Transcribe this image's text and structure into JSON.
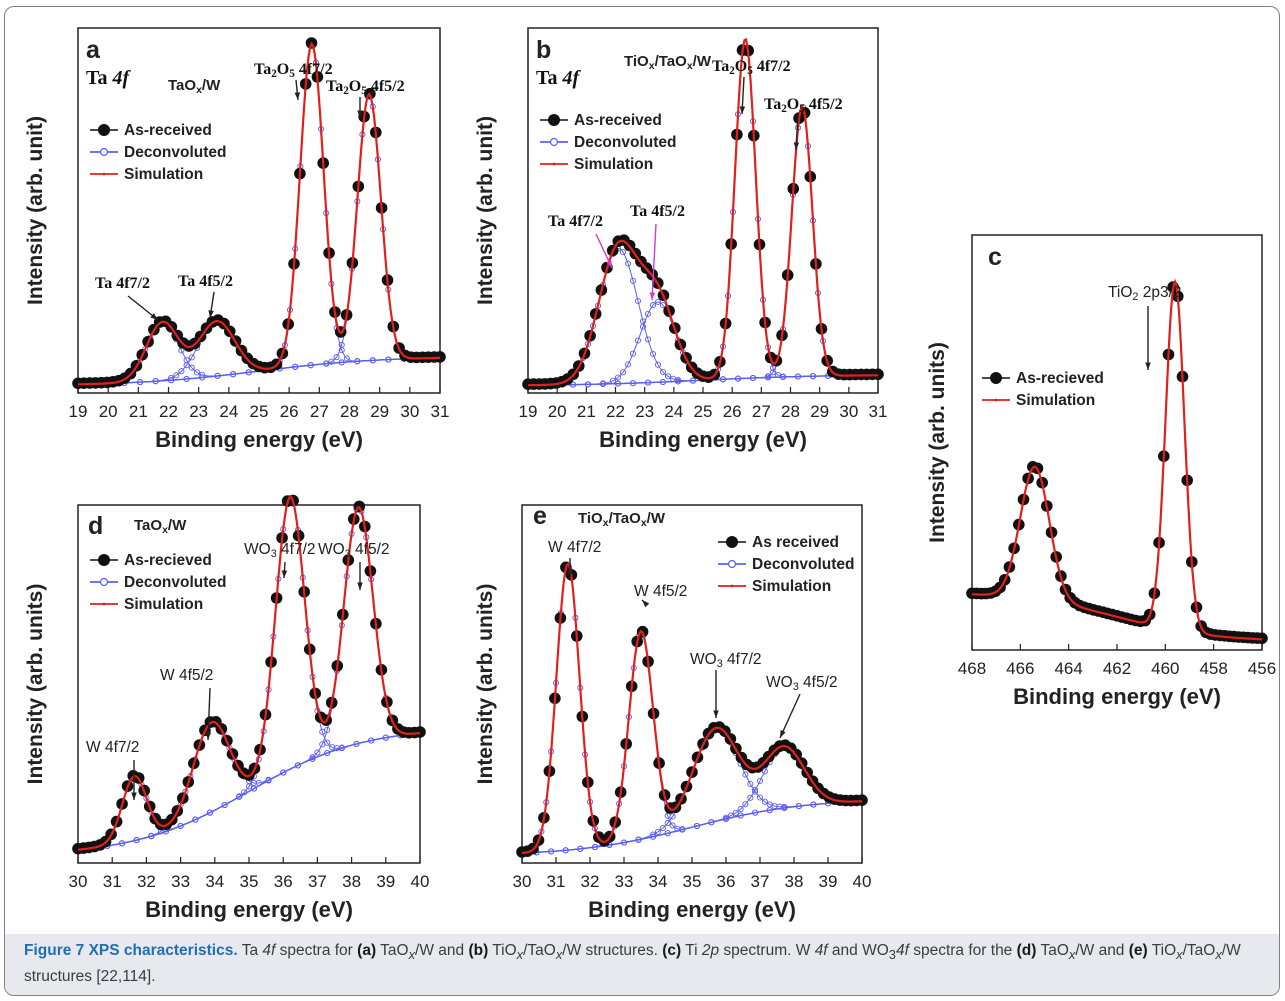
{
  "colors": {
    "measured": "#111111",
    "deconvoluted": "#5b5ff0",
    "simulation": "#e0201b",
    "blue_text": "#2a34d6",
    "magenta_arrow": "#d23cd2"
  },
  "chart_data": [
    {
      "id": "a",
      "type": "scatter",
      "panel_letter": "a",
      "core_level": "Ta 4f",
      "sample": "TaOx/W",
      "xlabel": "Binding energy (eV)",
      "ylabel": "Intensity (arb. unit)",
      "xlim": [
        19,
        31
      ],
      "x_reversed": false,
      "xticks": [
        19,
        20,
        21,
        22,
        23,
        24,
        25,
        26,
        27,
        28,
        29,
        30,
        31
      ],
      "legend": [
        "As-received",
        "Deconvoluted",
        "Simulation"
      ],
      "background": [
        0.02,
        0.1
      ],
      "components": [
        {
          "center": 21.8,
          "amp": 0.16,
          "width": 0.75
        },
        {
          "center": 23.6,
          "amp": 0.15,
          "width": 0.85
        },
        {
          "center": 26.75,
          "amp": 0.88,
          "width": 0.55
        },
        {
          "center": 28.65,
          "amp": 0.73,
          "width": 0.55
        }
      ],
      "peak_labels": [
        {
          "text": "Ta 4f7/2",
          "x": 21.8
        },
        {
          "text": "Ta 4f5/2",
          "x": 23.6
        },
        {
          "text": "Ta2O5 4f7/2",
          "x": 26.75
        },
        {
          "text": "Ta2O5 4f5/2",
          "x": 28.65
        }
      ]
    },
    {
      "id": "b",
      "type": "scatter",
      "panel_letter": "b",
      "core_level": "Ta 4f",
      "sample": "TiOx/TaOx/W",
      "xlabel": "Binding energy (eV)",
      "ylabel": "Intensity (arb. unit)",
      "xlim": [
        19,
        31
      ],
      "x_reversed": false,
      "xticks": [
        19,
        20,
        21,
        22,
        23,
        24,
        25,
        26,
        27,
        28,
        29,
        30,
        31
      ],
      "legend": [
        "As-received",
        "Deconvoluted",
        "Simulation"
      ],
      "background": [
        0.02,
        0.05
      ],
      "components": [
        {
          "center": 22.1,
          "amp": 0.37,
          "width": 0.95
        },
        {
          "center": 23.45,
          "amp": 0.22,
          "width": 0.85
        },
        {
          "center": 26.45,
          "amp": 0.93,
          "width": 0.5
        },
        {
          "center": 28.4,
          "amp": 0.74,
          "width": 0.5
        }
      ],
      "peak_labels": [
        {
          "text": "Ta 4f7/2",
          "x": 22.1
        },
        {
          "text": "Ta 4f5/2",
          "x": 23.45
        },
        {
          "text": "Ta2O5 4f7/2",
          "x": 26.45
        },
        {
          "text": "Ta2O5 4f5/2",
          "x": 28.4
        }
      ]
    },
    {
      "id": "c",
      "type": "scatter",
      "panel_letter": "c",
      "core_level": "",
      "sample": "",
      "xlabel": "Binding energy (eV)",
      "ylabel": "Intensity (arb. units)",
      "xlim": [
        468,
        456
      ],
      "x_reversed": true,
      "xticks": [
        468,
        466,
        464,
        462,
        460,
        458,
        456
      ],
      "legend": [
        "As-recieved",
        "Simulation"
      ],
      "background": [
        0.14,
        0.02
      ],
      "components": [
        {
          "center": 465.4,
          "amp": 0.32,
          "width": 0.85
        },
        {
          "center": 459.6,
          "amp": 0.84,
          "width": 0.55
        }
      ],
      "peak_labels": [
        {
          "text": "TiO2 2p3/2",
          "x": 459.6
        }
      ]
    },
    {
      "id": "d",
      "type": "scatter",
      "panel_letter": "d",
      "core_level": "",
      "sample": "TaOx/W",
      "xlabel": "Binding energy (eV)",
      "ylabel": "Intensity (arb. units)",
      "xlim": [
        30,
        40
      ],
      "x_reversed": false,
      "xticks": [
        30,
        31,
        32,
        33,
        34,
        35,
        36,
        37,
        38,
        39,
        40
      ],
      "legend": [
        "As-recieved",
        "Deconvoluted",
        "Simulation"
      ],
      "background": [
        0.02,
        0.38
      ],
      "components": [
        {
          "center": 31.65,
          "amp": 0.18,
          "width": 0.5
        },
        {
          "center": 33.9,
          "amp": 0.25,
          "width": 0.75
        },
        {
          "center": 36.2,
          "amp": 0.76,
          "width": 0.6
        },
        {
          "center": 38.2,
          "amp": 0.66,
          "width": 0.6
        }
      ],
      "peak_labels": [
        {
          "text": "W 4f7/2",
          "x": 31.65
        },
        {
          "text": "W 4f5/2",
          "x": 33.9
        },
        {
          "text": "WO3 4f7/2",
          "x": 36.2
        },
        {
          "text": "WO3 4f5/2",
          "x": 38.2
        }
      ]
    },
    {
      "id": "e",
      "type": "scatter",
      "panel_letter": "e",
      "core_level": "",
      "sample": "TiOx/TaOx/W",
      "xlabel": "Binding energy (eV)",
      "ylabel": "Intensity (arb. units)",
      "xlim": [
        30,
        40
      ],
      "x_reversed": false,
      "xticks": [
        30,
        31,
        32,
        33,
        34,
        35,
        36,
        37,
        38,
        39,
        40
      ],
      "legend": [
        "As received",
        "Deconvoluted",
        "Simulation"
      ],
      "background": [
        0.02,
        0.18
      ],
      "components": [
        {
          "center": 31.35,
          "amp": 0.8,
          "width": 0.48
        },
        {
          "center": 33.5,
          "amp": 0.58,
          "width": 0.5
        },
        {
          "center": 35.7,
          "amp": 0.26,
          "width": 0.95
        },
        {
          "center": 37.7,
          "amp": 0.17,
          "width": 0.85
        }
      ],
      "peak_labels": [
        {
          "text": "W 4f7/2",
          "x": 31.35
        },
        {
          "text": "W 4f5/2",
          "x": 33.5
        },
        {
          "text": "WO3 4f7/2",
          "x": 35.7
        },
        {
          "text": "WO3 4f5/2",
          "x": 37.7
        }
      ]
    }
  ],
  "caption": {
    "title": "Figure 7 XPS characteristics.",
    "body": "Ta 4f spectra for (a) TaOx/W and (b) TiOx/TaOx/W structures. (c) Ti 2p spectrum. W 4f and WO34f spectra for the (d) TaOx/W and (e) TiOx/TaOx/W structures [22,114]."
  }
}
